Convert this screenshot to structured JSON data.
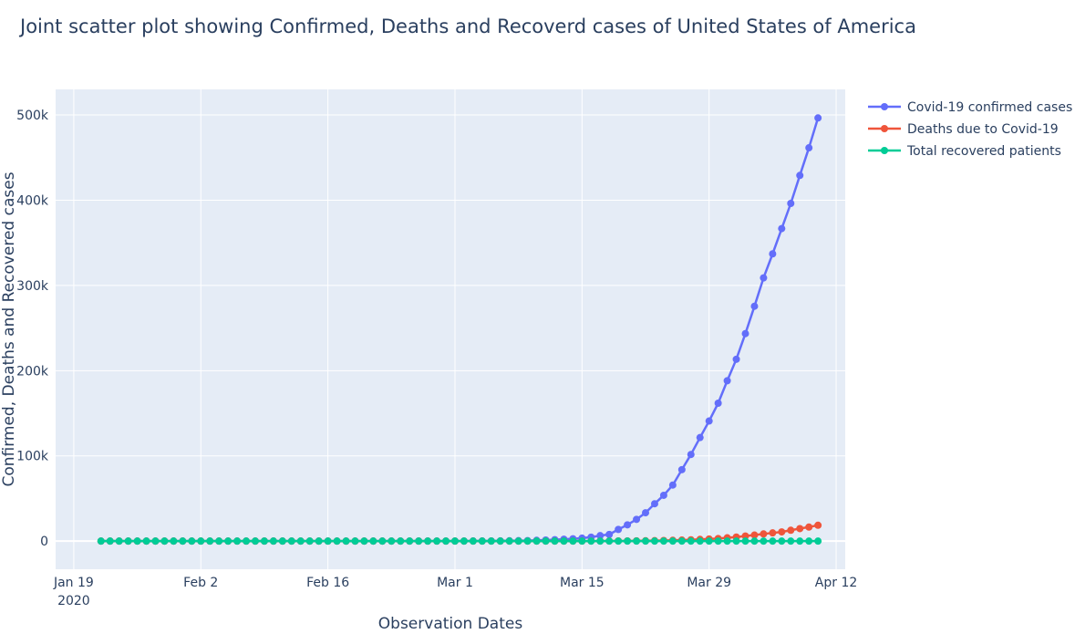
{
  "chart_data": {
    "type": "scatter",
    "mode": "lines+markers",
    "title": "Joint scatter plot showing Confirmed, Deaths and Recoverd cases of United States of America",
    "xlabel": "Observation Dates",
    "ylabel": "Confirmed, Deaths and Recovered cases",
    "x_start": "2020-01-22",
    "x_end": "2020-04-10",
    "xlim": [
      "2020-01-17",
      "2020-04-13"
    ],
    "ylim": [
      -33000,
      530000
    ],
    "x_ticks": [
      {
        "date": "2020-01-19",
        "label": "Jan 19",
        "sublabel": "2020"
      },
      {
        "date": "2020-02-02",
        "label": "Feb 2",
        "sublabel": ""
      },
      {
        "date": "2020-02-16",
        "label": "Feb 16",
        "sublabel": ""
      },
      {
        "date": "2020-03-01",
        "label": "Mar 1",
        "sublabel": ""
      },
      {
        "date": "2020-03-15",
        "label": "Mar 15",
        "sublabel": ""
      },
      {
        "date": "2020-03-29",
        "label": "Mar 29",
        "sublabel": ""
      },
      {
        "date": "2020-04-12",
        "label": "Apr 12",
        "sublabel": ""
      }
    ],
    "y_ticks": [
      {
        "value": 0,
        "label": "0"
      },
      {
        "value": 100000,
        "label": "100k"
      },
      {
        "value": 200000,
        "label": "200k"
      },
      {
        "value": 300000,
        "label": "300k"
      },
      {
        "value": 400000,
        "label": "400k"
      },
      {
        "value": 500000,
        "label": "500k"
      }
    ],
    "grid": true,
    "legend_position": "top-right",
    "series": [
      {
        "name": "Covid-19 confirmed cases",
        "color": "#636efa",
        "values": [
          1,
          1,
          2,
          2,
          5,
          5,
          5,
          5,
          5,
          7,
          8,
          8,
          11,
          11,
          11,
          11,
          11,
          11,
          11,
          11,
          12,
          12,
          13,
          13,
          13,
          13,
          13,
          13,
          13,
          13,
          15,
          15,
          15,
          51,
          51,
          57,
          58,
          60,
          68,
          74,
          98,
          118,
          149,
          217,
          262,
          402,
          518,
          583,
          959,
          1281,
          1663,
          2179,
          2727,
          3499,
          4632,
          6421,
          7786,
          13680,
          19101,
          25493,
          33276,
          43847,
          53740,
          65778,
          83836,
          101657,
          121478,
          140886,
          161807,
          188172,
          213372,
          243453,
          275586,
          308850,
          337072,
          366667,
          396223,
          429052,
          461437,
          496535
        ]
      },
      {
        "name": "Deaths due to Covid-19",
        "color": "#ef553b",
        "values": [
          0,
          0,
          0,
          0,
          0,
          0,
          0,
          0,
          0,
          0,
          0,
          0,
          0,
          0,
          0,
          0,
          0,
          0,
          0,
          0,
          0,
          0,
          0,
          0,
          0,
          0,
          0,
          0,
          0,
          0,
          0,
          0,
          0,
          0,
          0,
          0,
          0,
          0,
          1,
          1,
          6,
          7,
          11,
          12,
          14,
          17,
          21,
          22,
          28,
          36,
          40,
          47,
          54,
          63,
          85,
          108,
          118,
          200,
          244,
          307,
          427,
          552,
          706,
          942,
          1209,
          1581,
          2026,
          2467,
          2978,
          3873,
          4757,
          5926,
          7087,
          8407,
          9619,
          10783,
          12722,
          14695,
          16478,
          18586
        ]
      },
      {
        "name": "Total recovered patients",
        "color": "#00cc96",
        "values": [
          0,
          0,
          0,
          0,
          0,
          0,
          0,
          0,
          0,
          0,
          0,
          0,
          0,
          0,
          0,
          0,
          0,
          0,
          0,
          0,
          0,
          0,
          0,
          0,
          0,
          0,
          0,
          0,
          0,
          0,
          0,
          0,
          0,
          0,
          0,
          0,
          0,
          0,
          7,
          7,
          7,
          7,
          7,
          7,
          7,
          7,
          8,
          8,
          8,
          8,
          8,
          12,
          12,
          17,
          17,
          17,
          17,
          17,
          17,
          17,
          17,
          17,
          17,
          17,
          17,
          17,
          17,
          17,
          17,
          17,
          17,
          17,
          17,
          17,
          17,
          17,
          17,
          17,
          17,
          17
        ]
      }
    ]
  }
}
